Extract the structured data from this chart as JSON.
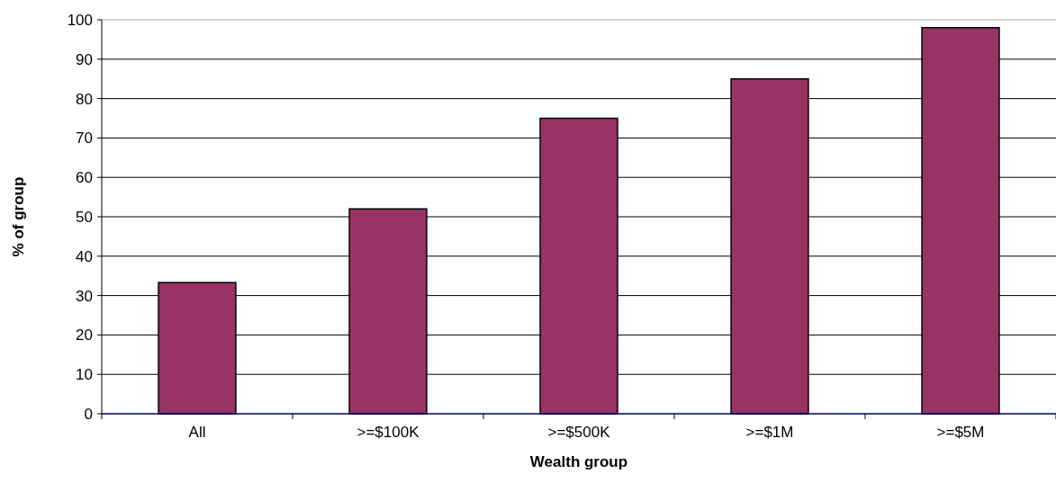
{
  "chart_data": {
    "type": "bar",
    "xlabel": "Wealth group",
    "ylabel": "% of group",
    "categories": [
      "All",
      ">=$100K",
      ">=$500K",
      ">=$1M",
      ">=$5M"
    ],
    "values": [
      33.3,
      52,
      75,
      85,
      98
    ],
    "color": "#993366",
    "ylim": [
      0,
      100
    ],
    "yticks": [
      0,
      10,
      20,
      30,
      40,
      50,
      60,
      70,
      80,
      90,
      100
    ],
    "grid": "y"
  }
}
